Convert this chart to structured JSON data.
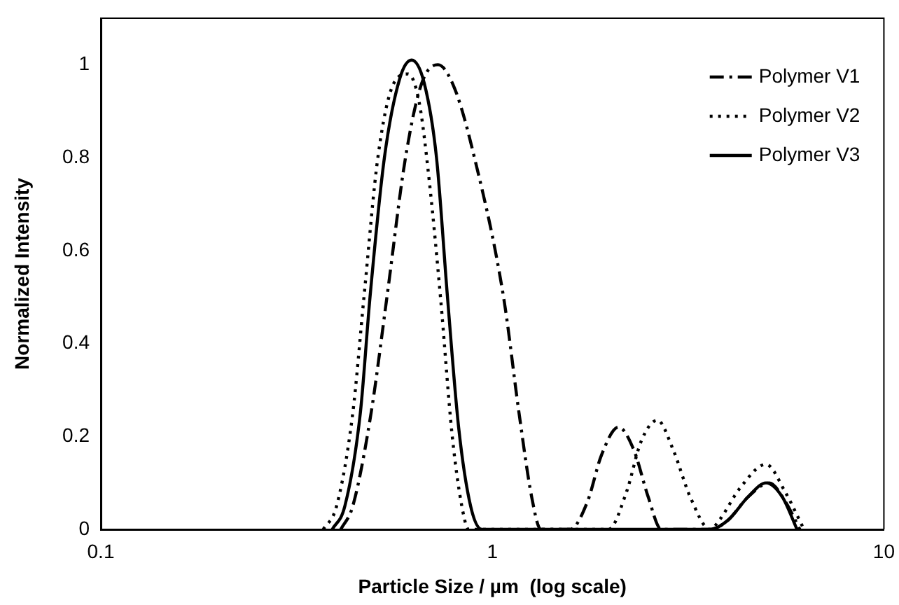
{
  "chart_data": {
    "type": "line",
    "xlabel": "Particle Size / µm  (log scale)",
    "ylabel": "Normalized Intensity",
    "log": "x",
    "xlim": [
      0.1,
      10
    ],
    "xticks": [
      0.1,
      1,
      10
    ],
    "ylim": [
      0,
      1.1
    ],
    "yticks": [
      0,
      0.2,
      0.4,
      0.6,
      0.8,
      1
    ],
    "grid": false,
    "legend": "top right",
    "marker": "none",
    "series": [
      {
        "name": "Polymer V1",
        "color": "#000000",
        "line_style": "dashdot",
        "x": [
          0.41,
          0.44,
          0.49,
          0.538,
          0.6,
          0.66,
          0.726,
          0.8,
          0.9,
          1.068,
          1.17,
          1.26,
          1.33,
          1.58,
          1.75,
          1.9,
          2.1,
          2.3,
          2.5,
          2.7,
          3.6,
          4.0,
          4.5,
          5.1,
          5.6,
          6.1
        ],
        "values": [
          0,
          0.05,
          0.25,
          0.5,
          0.8,
          0.96,
          1.0,
          0.95,
          0.8,
          0.5,
          0.25,
          0.07,
          0,
          0,
          0.06,
          0.16,
          0.22,
          0.17,
          0.07,
          0,
          0,
          0.02,
          0.07,
          0.1,
          0.06,
          0
        ]
      },
      {
        "name": "Polymer V2",
        "color": "#000000",
        "line_style": "dotted",
        "x": [
          0.37,
          0.4,
          0.44,
          0.47,
          0.51,
          0.56,
          0.609,
          0.65,
          0.69,
          0.737,
          0.79,
          0.84,
          0.87,
          1.98,
          2.2,
          2.4,
          2.64,
          2.9,
          3.2,
          3.6,
          3.8,
          4.3,
          5.0,
          5.6,
          6.25
        ],
        "values": [
          0,
          0.05,
          0.25,
          0.5,
          0.8,
          0.96,
          0.98,
          0.92,
          0.75,
          0.5,
          0.2,
          0.04,
          0,
          0,
          0.08,
          0.19,
          0.235,
          0.17,
          0.07,
          0,
          0.02,
          0.09,
          0.14,
          0.08,
          0
        ]
      },
      {
        "name": "Polymer V3",
        "color": "#000000",
        "line_style": "solid",
        "x": [
          0.39,
          0.42,
          0.46,
          0.487,
          0.53,
          0.58,
          0.622,
          0.67,
          0.72,
          0.768,
          0.82,
          0.88,
          0.94,
          3.6,
          4.0,
          4.5,
          5.0,
          5.5,
          6.0
        ],
        "values": [
          0,
          0.05,
          0.25,
          0.5,
          0.8,
          0.97,
          1.01,
          0.96,
          0.8,
          0.5,
          0.22,
          0.05,
          0,
          0,
          0.02,
          0.07,
          0.1,
          0.07,
          0
        ]
      }
    ]
  }
}
